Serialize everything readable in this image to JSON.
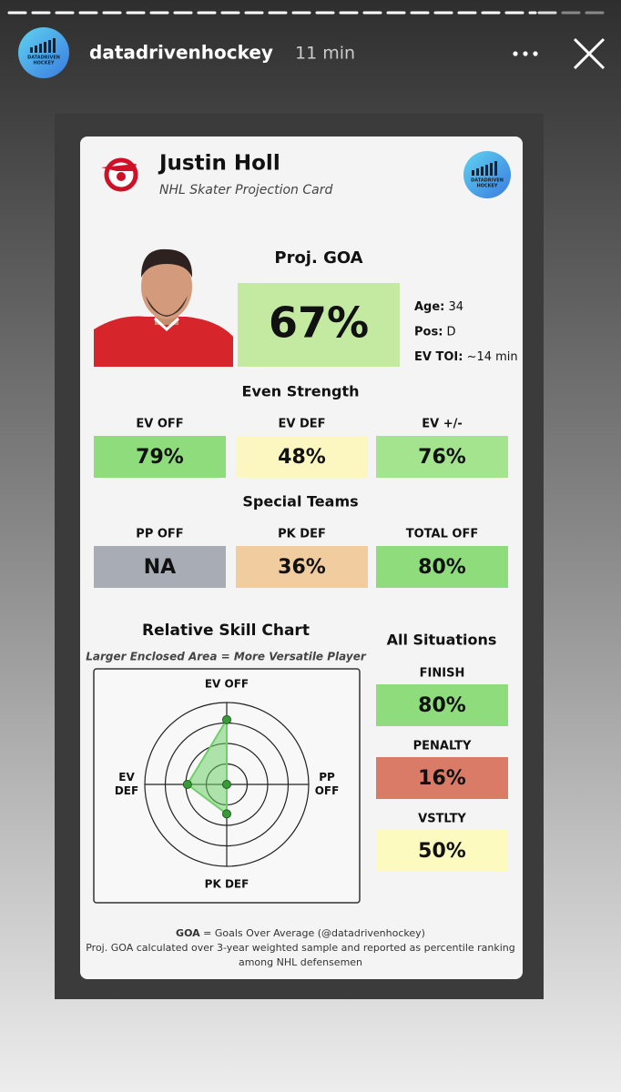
{
  "story": {
    "username": "datadrivenhockey",
    "time": "11 min"
  },
  "brand": [
    "DATADRIVEN",
    "HOCKEY"
  ],
  "card": {
    "name": "Justin Holl",
    "subtitle": "NHL Skater Projection Card",
    "proj_label": "Proj. GOA",
    "proj_value": "67%",
    "info": [
      {
        "label": "Age:",
        "value": "34"
      },
      {
        "label": "Pos:",
        "value": "D"
      },
      {
        "label": "EV TOI:",
        "value": "~14 min"
      }
    ],
    "sections": [
      {
        "title": "Even Strength",
        "stats": [
          {
            "label": "EV OFF",
            "value": "79%",
            "color": "#8fdc7c"
          },
          {
            "label": "EV DEF",
            "value": "48%",
            "color": "#fcf7c0"
          },
          {
            "label": "EV +/-",
            "value": "76%",
            "color": "#a4e48e"
          }
        ]
      },
      {
        "title": "Special Teams",
        "stats": [
          {
            "label": "PP OFF",
            "value": "NA",
            "color": "#a8acb4"
          },
          {
            "label": "PK DEF",
            "value": "36%",
            "color": "#f0cc9e"
          },
          {
            "label": "TOTAL OFF",
            "value": "80%",
            "color": "#8fdc7c"
          }
        ]
      }
    ],
    "situations": {
      "title": "All Situations",
      "stats": [
        {
          "label": "FINISH",
          "value": "80%",
          "color": "#8fdc7c"
        },
        {
          "label": "PENALTY",
          "value": "16%",
          "color": "#d97b66"
        },
        {
          "label": "VSTLTY",
          "value": "50%",
          "color": "#fdfabf"
        }
      ]
    },
    "radar": {
      "type": "radar",
      "title": "Relative Skill Chart",
      "subtitle": "Larger Enclosed Area = More Versatile Player",
      "axes": [
        [
          "EV OFF"
        ],
        [
          "PP",
          "OFF"
        ],
        [
          "PK DEF"
        ],
        [
          "EV",
          "DEF"
        ]
      ],
      "values": [
        79,
        null,
        36,
        48
      ],
      "rlim": [
        0,
        100
      ],
      "rings": [
        25,
        50,
        75,
        100
      ],
      "color": "#6fcf6a"
    },
    "footer": {
      "term": "GOA",
      "definition": "= Goals Over Average (@datadrivenhockey)",
      "lines": [
        "Proj. GOA calculated over 3-year weighted sample and reported as percentile ranking",
        "among NHL defensemen"
      ]
    }
  }
}
